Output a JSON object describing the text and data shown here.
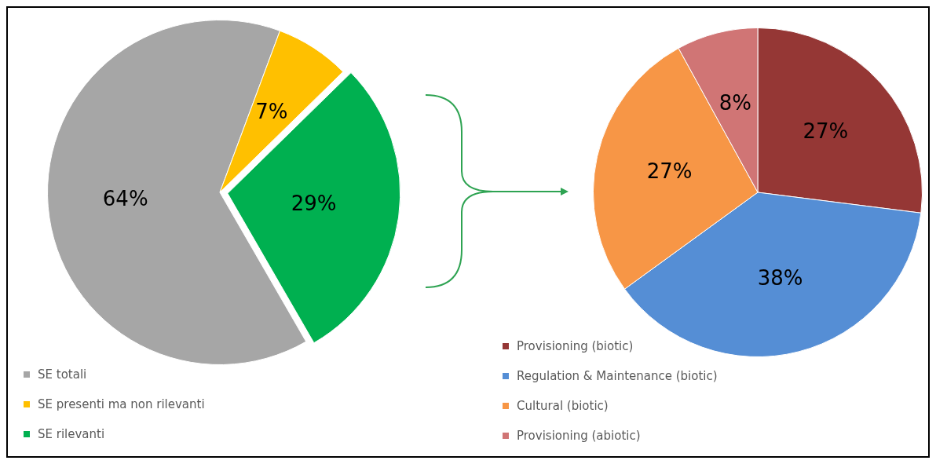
{
  "chart_data": [
    {
      "type": "pie",
      "categories": [
        "SE totali",
        "SE presenti ma non rilevanti",
        "SE rilevanti"
      ],
      "values": [
        64,
        7,
        29
      ],
      "colors": [
        "#a6a6a6",
        "#ffc000",
        "#00b050"
      ],
      "value_labels": [
        "64%",
        "7%",
        "29%"
      ],
      "legend": "bottom left"
    },
    {
      "type": "pie",
      "categories": [
        "Provisioning (biotic)",
        "Regulation & Maintenance (biotic)",
        "Cultural (biotic)",
        "Provisioning (abiotic)"
      ],
      "values": [
        27,
        38,
        27,
        8
      ],
      "colors": [
        "#953735",
        "#558ed5",
        "#f79646",
        "#d07575"
      ],
      "value_labels": [
        "27%",
        "38%",
        "27%",
        "8%"
      ],
      "legend": "bottom left"
    }
  ]
}
